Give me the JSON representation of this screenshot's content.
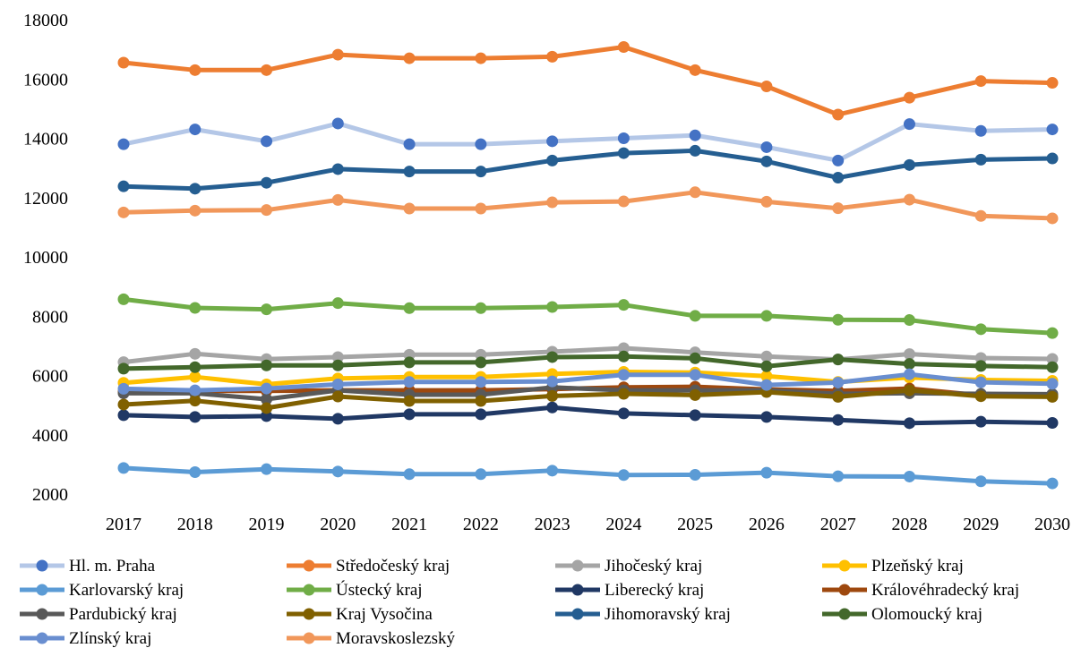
{
  "chart_data": {
    "type": "line",
    "categories": [
      "2017",
      "2018",
      "2019",
      "2020",
      "2021",
      "2022",
      "2023",
      "2024",
      "2025",
      "2026",
      "2027",
      "2028",
      "2029",
      "2030"
    ],
    "ylim": [
      2000,
      18000
    ],
    "yticks": [
      2000,
      4000,
      6000,
      8000,
      10000,
      12000,
      14000,
      16000,
      18000
    ],
    "grid": false,
    "legend_position": "bottom",
    "series": [
      {
        "name": "Hl. m. Praha",
        "line_color": "#b4c7e7",
        "marker_color": "#4472c4",
        "values": [
          13800,
          14300,
          13900,
          14500,
          13800,
          13800,
          13900,
          14000,
          14100,
          13700,
          13250,
          14480,
          14250,
          14300
        ]
      },
      {
        "name": "Středočeský kraj",
        "line_color": "#ed7d31",
        "marker_color": "#ed7d31",
        "values": [
          16550,
          16300,
          16300,
          16820,
          16700,
          16700,
          16750,
          17080,
          16300,
          15750,
          14800,
          15370,
          15930,
          15870
        ]
      },
      {
        "name": "Jihočeský kraj",
        "line_color": "#a5a5a5",
        "marker_color": "#a5a5a5",
        "values": [
          6450,
          6730,
          6550,
          6620,
          6700,
          6700,
          6800,
          6920,
          6780,
          6640,
          6540,
          6720,
          6590,
          6560
        ]
      },
      {
        "name": "Plzeňský kraj",
        "line_color": "#ffc000",
        "marker_color": "#ffc000",
        "values": [
          5750,
          5950,
          5700,
          5900,
          5950,
          5950,
          6050,
          6120,
          6100,
          5980,
          5780,
          5930,
          5850,
          5820
        ]
      },
      {
        "name": "Karlovarský kraj",
        "line_color": "#5b9bd5",
        "marker_color": "#5b9bd5",
        "values": [
          2880,
          2740,
          2840,
          2760,
          2670,
          2670,
          2790,
          2640,
          2650,
          2720,
          2600,
          2590,
          2430,
          2360
        ]
      },
      {
        "name": "Ústecký kraj",
        "line_color": "#70ad47",
        "marker_color": "#70ad47",
        "values": [
          8570,
          8280,
          8230,
          8440,
          8270,
          8270,
          8310,
          8380,
          8010,
          8010,
          7880,
          7870,
          7560,
          7430
        ]
      },
      {
        "name": "Liberecký kraj",
        "line_color": "#203864",
        "marker_color": "#203864",
        "values": [
          4660,
          4600,
          4630,
          4540,
          4690,
          4690,
          4920,
          4720,
          4660,
          4600,
          4500,
          4390,
          4440,
          4400
        ]
      },
      {
        "name": "Královéhradecký kraj",
        "line_color": "#9e480e",
        "marker_color": "#9e480e",
        "values": [
          5450,
          5480,
          5480,
          5500,
          5500,
          5500,
          5540,
          5600,
          5620,
          5530,
          5480,
          5560,
          5330,
          5320
        ]
      },
      {
        "name": "Pardubický kraj",
        "line_color": "#595959",
        "marker_color": "#595959",
        "values": [
          5400,
          5400,
          5200,
          5500,
          5350,
          5350,
          5600,
          5500,
          5500,
          5500,
          5380,
          5400,
          5380,
          5370
        ]
      },
      {
        "name": "Kraj Vysočina",
        "line_color": "#806000",
        "marker_color": "#806000",
        "values": [
          5020,
          5150,
          4900,
          5290,
          5140,
          5140,
          5310,
          5380,
          5340,
          5440,
          5280,
          5500,
          5300,
          5280
        ]
      },
      {
        "name": "Jihomoravský kraj",
        "line_color": "#255e91",
        "marker_color": "#255e91",
        "values": [
          12380,
          12300,
          12500,
          12960,
          12880,
          12880,
          13250,
          13500,
          13580,
          13220,
          12670,
          13100,
          13280,
          13320
        ]
      },
      {
        "name": "Olomoucký kraj",
        "line_color": "#43682b",
        "marker_color": "#43682b",
        "values": [
          6230,
          6280,
          6340,
          6340,
          6440,
          6440,
          6620,
          6640,
          6580,
          6310,
          6540,
          6390,
          6320,
          6280
        ]
      },
      {
        "name": "Zlínský kraj",
        "line_color": "#698ed0",
        "marker_color": "#698ed0",
        "values": [
          5550,
          5500,
          5560,
          5700,
          5780,
          5780,
          5800,
          6020,
          6020,
          5680,
          5760,
          6040,
          5770,
          5720
        ]
      },
      {
        "name": "Moravskoslezský",
        "line_color": "#f1975a",
        "marker_color": "#f1975a",
        "values": [
          11500,
          11560,
          11580,
          11920,
          11630,
          11630,
          11840,
          11870,
          12180,
          11860,
          11640,
          11930,
          11380,
          11300
        ]
      }
    ]
  }
}
